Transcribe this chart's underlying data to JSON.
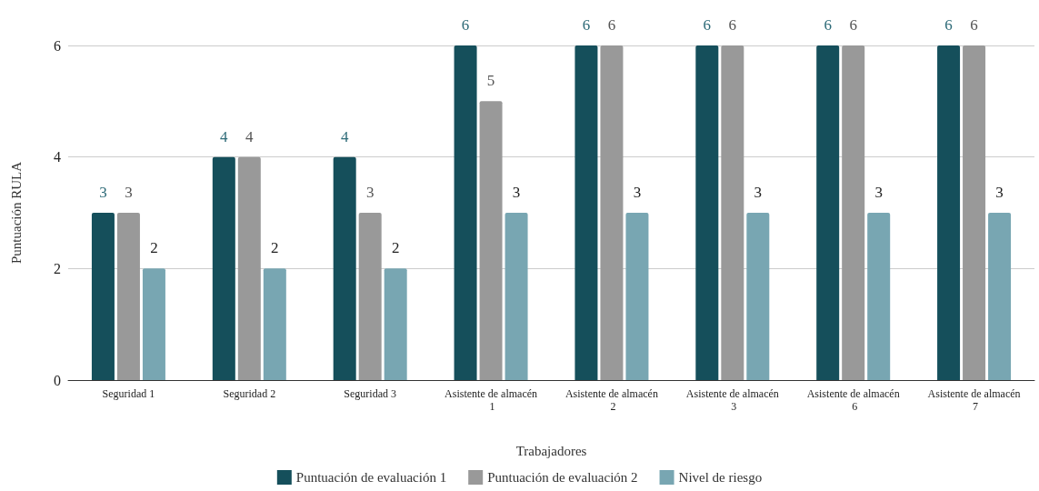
{
  "chart_data": {
    "type": "bar",
    "xlabel": "Trabajadores",
    "ylabel": "Puntuación RULA",
    "categories": [
      "Seguridad 1",
      "Seguridad 2",
      "Seguridad 3",
      "Asistente de almacén 1",
      "Asistente de almacén 2",
      "Asistente de almacén 3",
      "Asistente de almacén 6",
      "Asistente de almacén 7"
    ],
    "series": [
      {
        "name": "Puntuación de evaluación 1",
        "color": "#154f5b",
        "values": [
          3,
          4,
          4,
          6,
          6,
          6,
          6,
          6
        ]
      },
      {
        "name": "Puntuación de evaluación 2",
        "color": "#999999",
        "values": [
          3,
          4,
          3,
          5,
          6,
          6,
          6,
          6
        ]
      },
      {
        "name": "Nivel de riesgo",
        "color": "#78a6b2",
        "values": [
          2,
          2,
          2,
          3,
          3,
          3,
          3,
          3
        ]
      }
    ],
    "ylim": [
      0,
      6
    ],
    "yticks": [
      0,
      2,
      4,
      6
    ],
    "grid": "y",
    "legend": "bottom",
    "data_labels": true
  }
}
